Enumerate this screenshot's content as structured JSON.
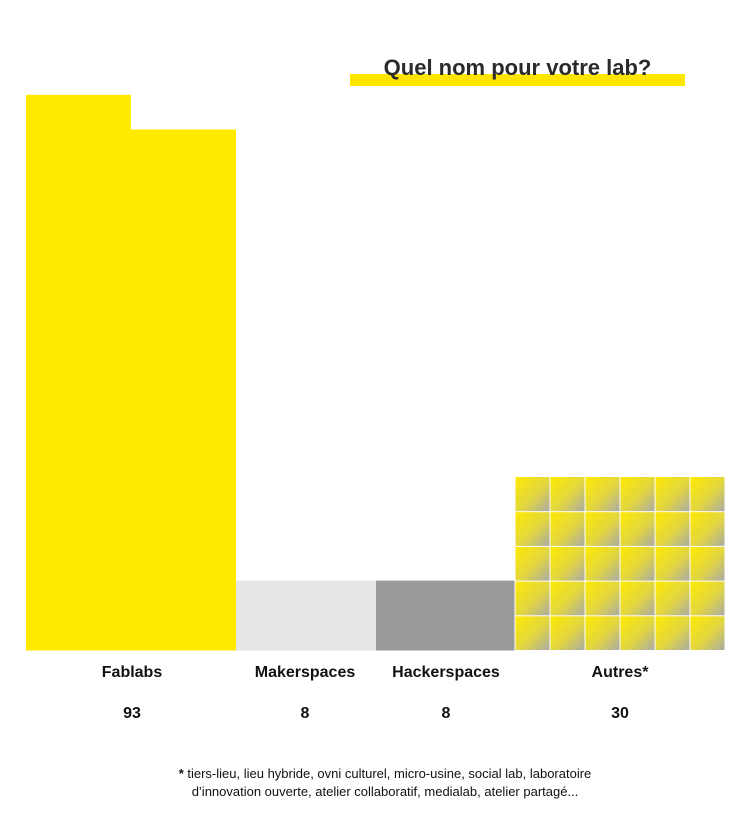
{
  "title": "Quel nom pour votre lab?",
  "chart_data": {
    "type": "bar",
    "categories": [
      "Fablabs",
      "Makerspaces",
      "Hackerspaces",
      "Autres*"
    ],
    "values": [
      93,
      8,
      8,
      30
    ],
    "value_labels": [
      "93",
      "8",
      "8",
      "30"
    ],
    "colors": [
      "#ffea00",
      "#e6e6e6",
      "#9a9a9a",
      "gradient-yellow-gray"
    ]
  },
  "footnote": {
    "marker": "*",
    "text_line1": " tiers-lieu, lieu hybride, ovni culturel, micro-usine, social lab, laboratoire",
    "text_line2": "d’innovation ouverte, atelier collaboratif, medialab, atelier partagé..."
  }
}
